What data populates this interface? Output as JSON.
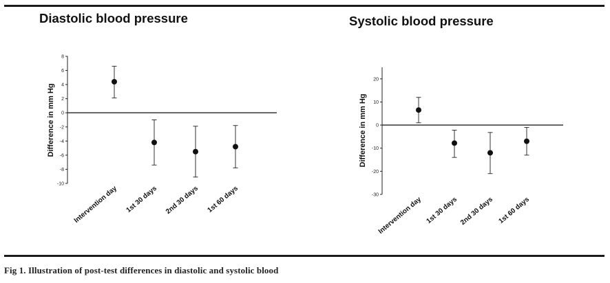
{
  "chart_data": [
    {
      "type": "scatter",
      "title": "Diastolic blood pressure",
      "ylabel": "Difference in mm Hg",
      "categories": [
        "Intervention day",
        "1st 30 days",
        "2nd 30 days",
        "1st 60 days"
      ],
      "values": [
        4.4,
        -4.2,
        -5.5,
        -4.8
      ],
      "error_low": [
        2.1,
        -7.4,
        -9.1,
        -7.8
      ],
      "error_high": [
        6.6,
        -1.0,
        -1.9,
        -1.8
      ],
      "yticks": [
        8,
        6,
        4,
        2,
        0,
        -2,
        -4,
        -6,
        -8,
        -10
      ],
      "ylim": [
        -10,
        8
      ]
    },
    {
      "type": "scatter",
      "title": "Systolic blood pressure",
      "ylabel": "Difference in mm Hg",
      "categories": [
        "Intervention day",
        "1st 30 days",
        "2nd 30 days",
        "1st 60 days"
      ],
      "values": [
        6.5,
        -7.8,
        -12,
        -7
      ],
      "error_low": [
        1,
        -14,
        -21,
        -13
      ],
      "error_high": [
        12,
        -2.2,
        -3.2,
        -1
      ],
      "yticks": [
        20,
        10,
        0,
        -10,
        -20,
        -30
      ],
      "ylim": [
        -30,
        25
      ]
    }
  ],
  "caption": "Fig 1. Illustration of post-test differences in diastolic and systolic blood"
}
